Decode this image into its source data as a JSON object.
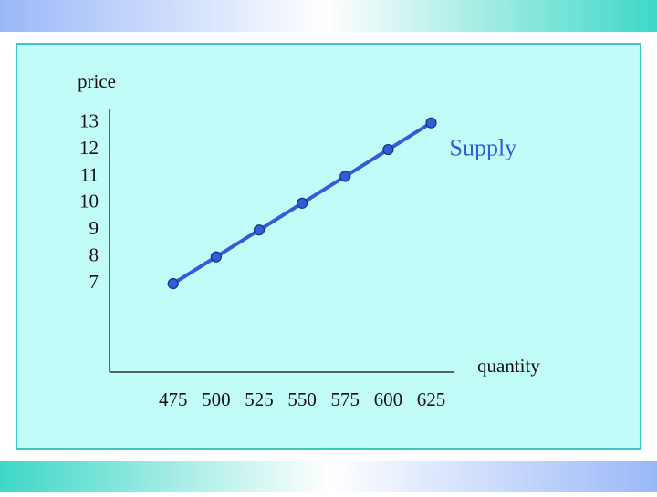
{
  "chart_data": {
    "type": "line",
    "x_label": "quantity",
    "y_label": "price",
    "x": [
      475,
      500,
      525,
      550,
      575,
      600,
      625
    ],
    "series": [
      {
        "name": "Supply",
        "color": "#2f5fd8",
        "values": [
          7,
          8,
          9,
          10,
          11,
          12,
          13
        ]
      }
    ],
    "xlim": [
      438,
      638
    ],
    "xticks": [
      475,
      500,
      525,
      550,
      575,
      600,
      625
    ],
    "ylim": [
      3.7,
      13.5
    ],
    "yticks": [
      7,
      8,
      9,
      10,
      11,
      12,
      13
    ],
    "grid": false
  }
}
